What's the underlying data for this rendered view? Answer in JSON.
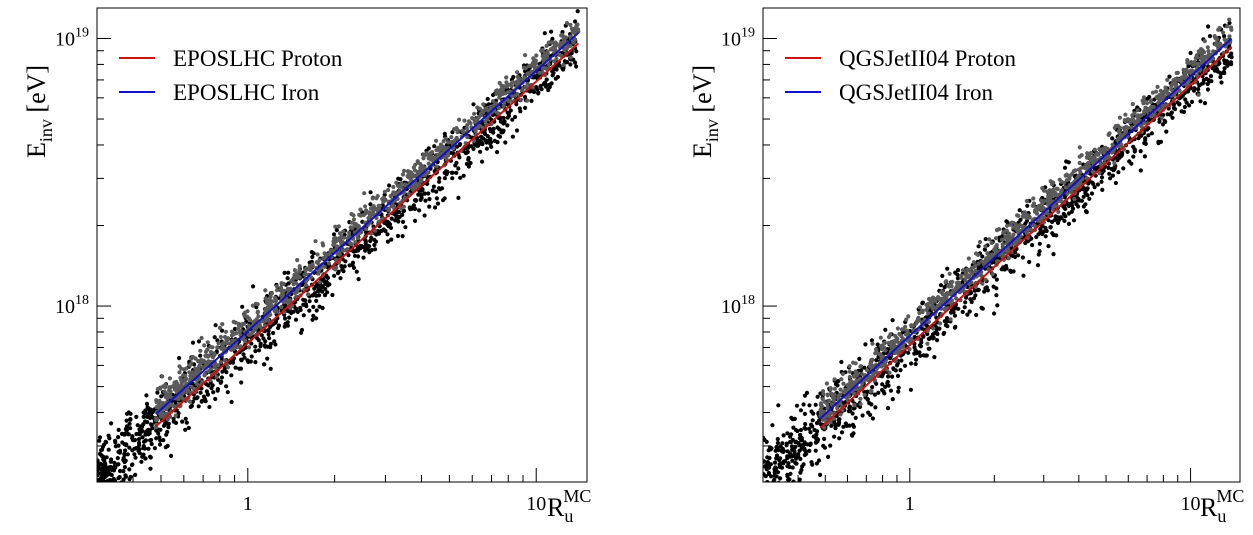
{
  "chart_data": [
    {
      "type": "scatter",
      "xlabel": "R_u^MC",
      "ylabel": "E_inv [eV]",
      "xscale": "log",
      "yscale": "log",
      "xlim": [
        0.3,
        15
      ],
      "ylim": [
        2.2e+17,
        1.3e+19
      ],
      "x_ticks": [
        {
          "value": 1,
          "label": "1"
        },
        {
          "value": 10,
          "label": "10"
        }
      ],
      "y_ticks": [
        {
          "value": 1e+18,
          "base": "10",
          "exp": "18"
        },
        {
          "value": 1e+19,
          "base": "10",
          "exp": "19"
        }
      ],
      "legend_position": "top-left",
      "grid": false,
      "series": [
        {
          "name": "EPOSLHC Proton",
          "kind": "fit-line",
          "color": "#cc1111",
          "x": [
            0.48,
            14
          ],
          "y": [
            3.55e+17,
            9.6e+18
          ]
        },
        {
          "name": "EPOSLHC Iron",
          "kind": "fit-line",
          "color": "#1111cc",
          "x": [
            0.48,
            14
          ],
          "y": [
            3.95e+17,
            1.05e+19
          ]
        },
        {
          "kind": "scatter",
          "color": "#000000",
          "x_range": [
            0.3,
            14
          ],
          "slope": 0.975,
          "y_at_1": 7.4e+17,
          "log_spread": 0.05,
          "n_points": 1400
        },
        {
          "kind": "scatter",
          "color": "#5a5a5a",
          "x_range": [
            0.48,
            14
          ],
          "slope": 0.975,
          "y_at_1": 8.3e+17,
          "log_spread": 0.028,
          "n_points": 1000
        }
      ]
    },
    {
      "type": "scatter",
      "xlabel": "R_u^MC",
      "ylabel": "E_inv [eV]",
      "xscale": "log",
      "yscale": "log",
      "xlim": [
        0.3,
        15
      ],
      "ylim": [
        2.2e+17,
        1.3e+19
      ],
      "x_ticks": [
        {
          "value": 1,
          "label": "1"
        },
        {
          "value": 10,
          "label": "10"
        }
      ],
      "y_ticks": [
        {
          "value": 1e+18,
          "base": "10",
          "exp": "18"
        },
        {
          "value": 1e+19,
          "base": "10",
          "exp": "19"
        }
      ],
      "legend_position": "top-left",
      "grid": false,
      "series": [
        {
          "name": "QGSJetII04 Proton",
          "kind": "fit-line",
          "color": "#cc1111",
          "x": [
            0.48,
            14
          ],
          "y": [
            3.5e+17,
            9.3e+18
          ]
        },
        {
          "name": "QGSJetII04 Iron",
          "kind": "fit-line",
          "color": "#1111cc",
          "x": [
            0.48,
            14
          ],
          "y": [
            3.8e+17,
            1e+19
          ]
        },
        {
          "kind": "scatter",
          "color": "#000000",
          "x_range": [
            0.3,
            14
          ],
          "slope": 0.975,
          "y_at_1": 7.2e+17,
          "log_spread": 0.05,
          "n_points": 1400
        },
        {
          "kind": "scatter",
          "color": "#5a5a5a",
          "x_range": [
            0.48,
            14
          ],
          "slope": 0.975,
          "y_at_1": 8e+17,
          "log_spread": 0.028,
          "n_points": 1000
        }
      ]
    }
  ]
}
